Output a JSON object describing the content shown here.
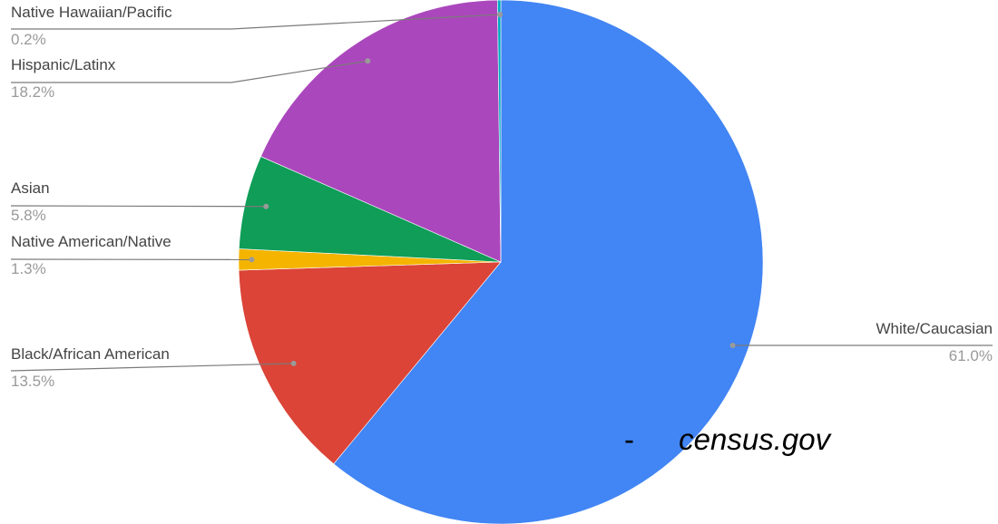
{
  "chart_data": {
    "type": "pie",
    "slices": [
      {
        "label": "White/Caucasian",
        "value": 61.0,
        "value_label": "61.0%",
        "color": "#4285f4"
      },
      {
        "label": "Black/African American",
        "value": 13.5,
        "value_label": "13.5%",
        "color": "#db4437"
      },
      {
        "label": "Native American/Native",
        "value": 1.3,
        "value_label": "1.3%",
        "color": "#f4b400"
      },
      {
        "label": "Asian",
        "value": 5.8,
        "value_label": "5.8%",
        "color": "#0f9d58"
      },
      {
        "label": "Hispanic/Latinx",
        "value": 18.2,
        "value_label": "18.2%",
        "color": "#ab47bc"
      },
      {
        "label": "Native Hawaiian/Pacific",
        "value": 0.2,
        "value_label": "0.2%",
        "color": "#00acc1"
      }
    ],
    "start_angle_deg": 0,
    "direction": "clockwise",
    "legend": "none",
    "labels_position": "outside with leader lines"
  },
  "source": {
    "dash": "-",
    "text": "census.gov"
  }
}
